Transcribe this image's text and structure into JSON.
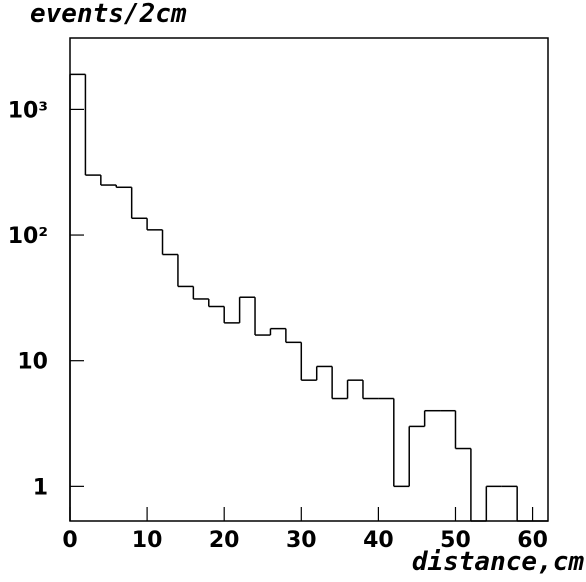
{
  "chart_data": {
    "type": "histogram",
    "y_label": "events/2cm",
    "x_label": "distance,cm",
    "bins": [
      0,
      2,
      4,
      6,
      8,
      10,
      12,
      14,
      16,
      18,
      20,
      22,
      24,
      26,
      28,
      30,
      32,
      34,
      36,
      38,
      40,
      42,
      44,
      46,
      48,
      50,
      52,
      54,
      56,
      58,
      60,
      62
    ],
    "values": [
      1900,
      300,
      250,
      240,
      136,
      110,
      70,
      39,
      31,
      27,
      20,
      32,
      16,
      18,
      14,
      7,
      9,
      5,
      7,
      5,
      5,
      1,
      3,
      4,
      4,
      2,
      0,
      1,
      1,
      0,
      0
    ],
    "color": "#000000",
    "xlim": [
      0,
      62
    ],
    "xticks": [
      0,
      10,
      20,
      30,
      40,
      50,
      60
    ],
    "ylim": [
      0.53,
      3700
    ],
    "yticks": [
      1,
      10,
      {
        "value": 100,
        "label": "10²"
      },
      {
        "value": 1000,
        "label": "10³"
      }
    ],
    "ylog": true
  }
}
